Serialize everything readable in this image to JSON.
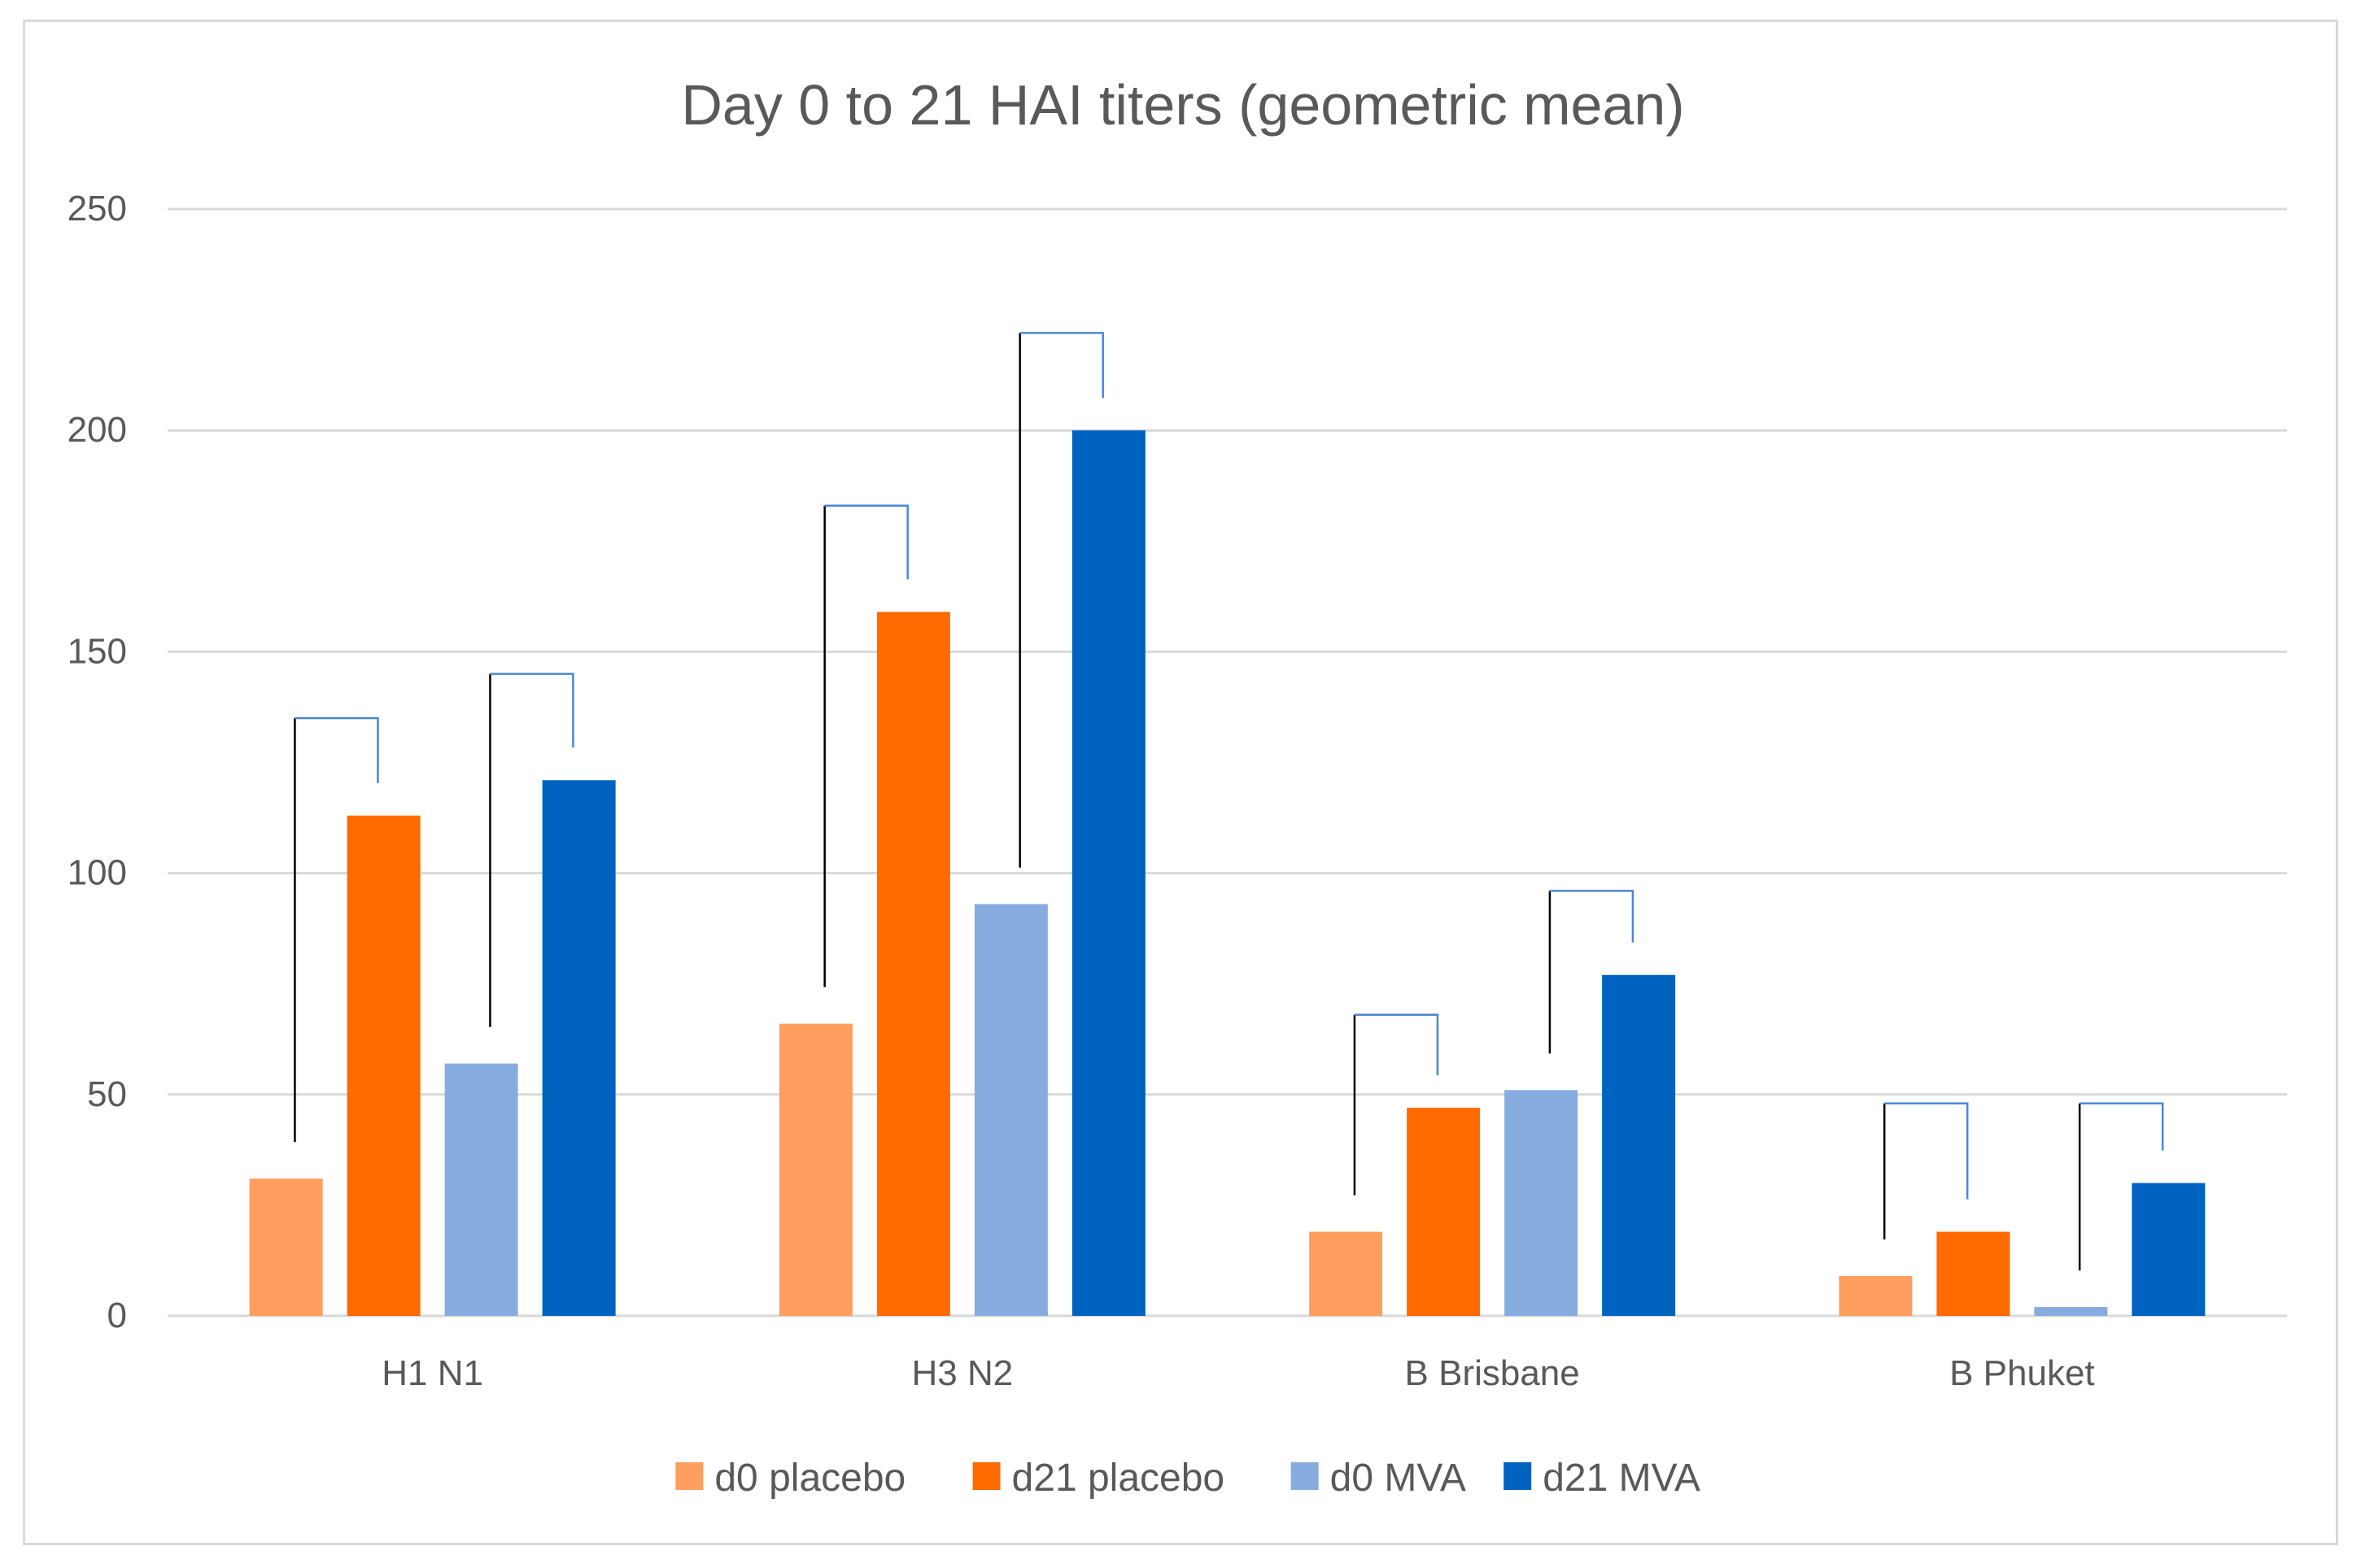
{
  "chart_data": {
    "type": "bar",
    "title": "Day 0 to 21 HAI titers (geometric mean)",
    "xlabel": "",
    "ylabel": "",
    "ylim": [
      0,
      250
    ],
    "yticks": [
      0,
      50,
      100,
      150,
      200,
      250
    ],
    "grid": true,
    "legend_position": "bottom",
    "categories": [
      "H1 N1",
      "H3 N2",
      "B Brisbane",
      "B Phuket"
    ],
    "series": [
      {
        "name": "d0 placebo",
        "color": "#ff9e5e",
        "values": [
          31,
          66,
          19,
          9
        ]
      },
      {
        "name": "d21 placebo",
        "color": "#ff6a00",
        "values": [
          113,
          159,
          47,
          19
        ]
      },
      {
        "name": "d0 MVA",
        "color": "#86acdf",
        "values": [
          57,
          93,
          51,
          2
        ]
      },
      {
        "name": "d21 MVA",
        "color": "#0063bf",
        "values": [
          121,
          200,
          77,
          30
        ]
      }
    ],
    "annotations": {
      "type": "comparison-brackets",
      "colors": {
        "placebo": "#000000",
        "mva": "#4a86d8"
      },
      "brackets": [
        {
          "category": "H1 N1",
          "from": "d0 placebo",
          "to": "d21 placebo",
          "level": 135
        },
        {
          "category": "H1 N1",
          "from": "d0 MVA",
          "to": "d21 MVA",
          "level": 145
        },
        {
          "category": "H3 N2",
          "from": "d0 placebo",
          "to": "d21 placebo",
          "level": 183
        },
        {
          "category": "H3 N2",
          "from": "d0 MVA",
          "to": "d21 MVA",
          "level": 222
        },
        {
          "category": "B Brisbane",
          "from": "d0 placebo",
          "to": "d21 placebo",
          "level": 68
        },
        {
          "category": "B Brisbane",
          "from": "d0 MVA",
          "to": "d21 MVA",
          "level": 96
        },
        {
          "category": "B Phuket",
          "from": "d0 placebo",
          "to": "d21 placebo",
          "level": 48
        },
        {
          "category": "B Phuket",
          "from": "d0 MVA",
          "to": "d21 MVA",
          "level": 48
        }
      ]
    }
  }
}
